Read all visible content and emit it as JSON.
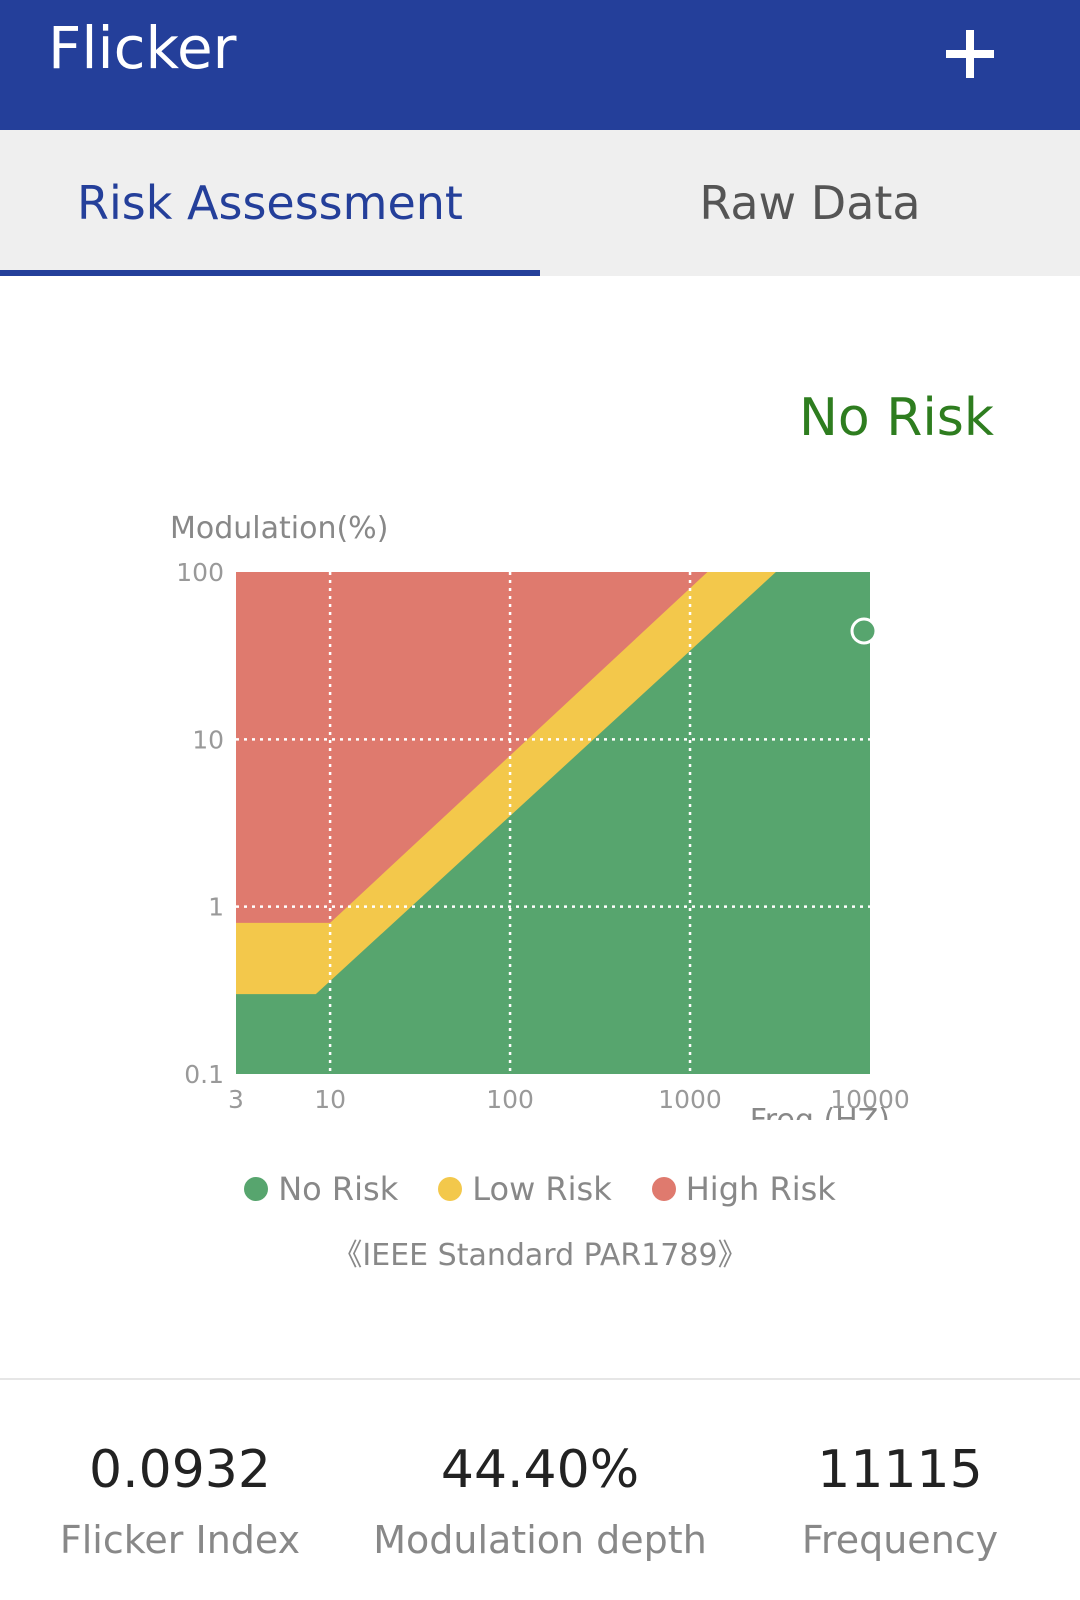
{
  "app": {
    "title": "Flicker",
    "add_icon": "plus-icon"
  },
  "tabs": [
    {
      "label": "Risk Assessment",
      "active": true
    },
    {
      "label": "Raw Data",
      "active": false
    }
  ],
  "status_text": "No Risk",
  "colors": {
    "brand": "#243f9a",
    "no_risk": "#57a56e",
    "low_risk": "#f3c84b",
    "high_risk": "#df7a6e",
    "status": "#2e7d1f"
  },
  "chart_data": {
    "type": "area",
    "ylabel": "Modulation(%)",
    "xlabel": "Freq.(HZ)",
    "x_scale": "log",
    "y_scale": "log",
    "xlim": [
      3,
      10000
    ],
    "ylim": [
      0.1,
      100
    ],
    "x_ticks": [
      "3",
      "10",
      "100",
      "1000",
      "10000"
    ],
    "y_ticks": [
      "100",
      "10",
      "1",
      "0.1"
    ],
    "grid": true,
    "regions": [
      {
        "name": "No Risk",
        "boundary": [
          [
            3,
            0.3
          ],
          [
            8.33,
            0.3
          ],
          [
            3000,
            100
          ]
        ]
      },
      {
        "name": "Low Risk",
        "boundary": [
          [
            3,
            0.8
          ],
          [
            10,
            0.8
          ],
          [
            1250,
            100
          ]
        ]
      },
      {
        "name": "High Risk",
        "boundary": "above Low Risk"
      }
    ],
    "point": {
      "x": 10000,
      "y": 44.4
    }
  },
  "legend": [
    {
      "label": "No Risk",
      "color": "#57a56e"
    },
    {
      "label": "Low Risk",
      "color": "#f3c84b"
    },
    {
      "label": "High Risk",
      "color": "#df7a6e"
    }
  ],
  "standard": "《IEEE Standard PAR1789》",
  "metrics": [
    {
      "value": "0.0932",
      "label": "Flicker Index"
    },
    {
      "value": "44.40%",
      "label": "Modulation depth"
    },
    {
      "value": "11115",
      "label": "Frequency"
    }
  ]
}
